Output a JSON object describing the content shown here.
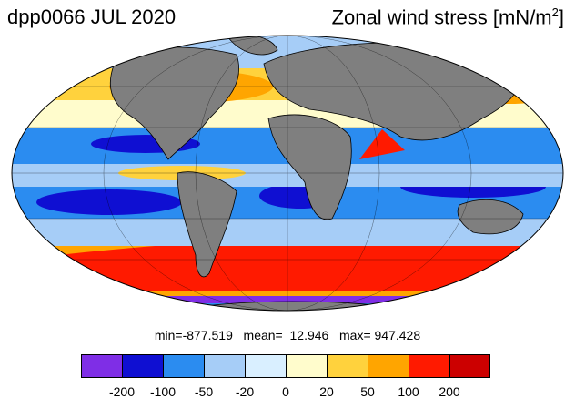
{
  "header": {
    "experiment_date": "dpp0066 JUL 2020",
    "variable": "Zonal wind stress [mN/m",
    "variable_exp": "2",
    "variable_close": "]"
  },
  "stats": {
    "text": "min=-877.519   mean=  12.946   max= 947.428"
  },
  "colorbar": {
    "colors": [
      "#7f2ee6",
      "#0f0fd2",
      "#2b8cf0",
      "#a6cdf7",
      "#d9efff",
      "#fffccc",
      "#ffd23d",
      "#ffa500",
      "#ff1a00",
      "#cc0000"
    ],
    "ticks": [
      "-200",
      "-100",
      "-50",
      "-20",
      "0",
      "20",
      "50",
      "100",
      "200"
    ]
  },
  "map": {
    "projection": "mollweide",
    "ocean_base_color": "#d9efff",
    "land_color": "#7f7f7f"
  }
}
